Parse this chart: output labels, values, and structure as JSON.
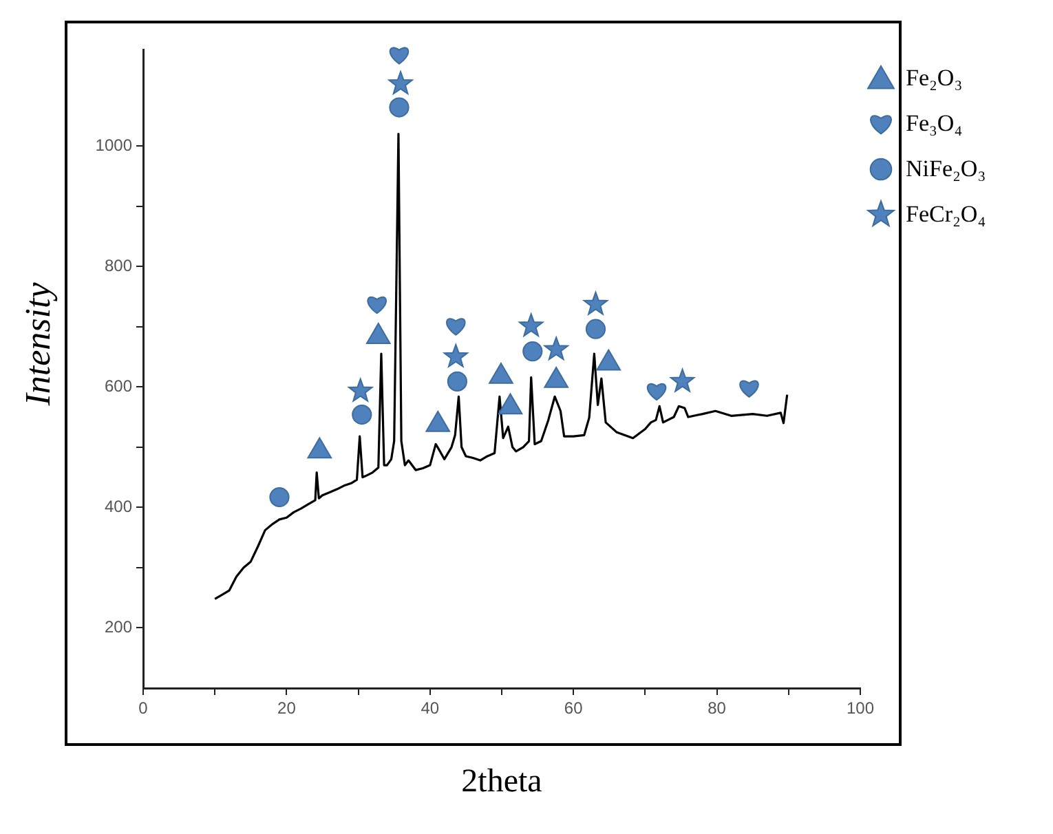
{
  "chart_data": {
    "type": "line",
    "xlabel": "2theta",
    "ylabel": "Intensity",
    "xlim": [
      0,
      100
    ],
    "xticks": [
      0,
      {
        "value": 10,
        "label": null
      },
      20,
      {
        "value": 30,
        "label": null
      },
      40,
      {
        "value": 50,
        "label": null
      },
      60,
      {
        "value": 70,
        "label": null
      },
      80,
      {
        "value": 90,
        "label": null
      },
      100
    ],
    "ylim": [
      100,
      1160
    ],
    "yticks": [
      200,
      {
        "value": 300,
        "label": null
      },
      400,
      {
        "value": 500,
        "label": null
      },
      600,
      {
        "value": 700,
        "label": null
      },
      800,
      {
        "value": 900,
        "label": null
      },
      1000
    ],
    "grid": false,
    "legend": "right",
    "series": [
      {
        "color": "#000000",
        "marker": "none",
        "x": [
          10,
          11,
          12,
          13,
          14,
          15,
          16,
          17,
          18,
          19,
          20,
          21,
          22,
          23,
          24,
          24.2,
          24.5,
          25,
          26,
          27,
          28,
          29,
          29.8,
          30.2,
          30.6,
          31,
          32,
          32.8,
          33.2,
          33.6,
          34,
          34.6,
          35,
          35.6,
          36,
          36.5,
          37,
          38,
          39,
          40,
          40.8,
          41.3,
          42,
          43,
          43.5,
          44,
          44.4,
          45,
          46,
          47,
          48,
          49,
          49.7,
          50.2,
          50.9,
          51.5,
          52,
          53,
          53.8,
          54.1,
          54.6,
          55.5,
          56.5,
          57.4,
          58.2,
          58.7,
          60,
          61.5,
          62.2,
          62.9,
          63.4,
          63.9,
          64.5,
          66,
          68.3,
          70,
          70.8,
          71.5,
          72,
          72.5,
          74,
          74.7,
          75.5,
          76,
          78,
          79.8,
          82,
          85,
          87,
          88.9,
          89.3,
          89.8
        ],
        "values": [
          248,
          255,
          262,
          285,
          300,
          310,
          335,
          362,
          372,
          380,
          383,
          392,
          398,
          405,
          412,
          458,
          415,
          420,
          425,
          430,
          436,
          440,
          446,
          518,
          450,
          452,
          458,
          466,
          655,
          470,
          470,
          480,
          510,
          1020,
          510,
          470,
          478,
          462,
          465,
          470,
          505,
          495,
          480,
          500,
          520,
          584,
          500,
          485,
          482,
          478,
          485,
          490,
          584,
          515,
          534,
          500,
          493,
          500,
          510,
          616,
          505,
          510,
          545,
          584,
          560,
          518,
          518,
          520,
          549,
          655,
          570,
          614,
          541,
          525,
          515,
          530,
          541,
          545,
          568,
          541,
          550,
          568,
          565,
          550,
          555,
          560,
          552,
          555,
          552,
          557,
          540,
          587
        ]
      },
      {
        "type": "scatter",
        "name": "Fe₂O₃",
        "color": "#4f81bd",
        "marker": "triangle",
        "x": [
          24.6,
          32.8,
          41.1,
          49.9,
          51.2,
          57.6,
          64.9
        ],
        "values": [
          497,
          687,
          541,
          621,
          570,
          614,
          643
        ]
      },
      {
        "type": "scatter",
        "name": "Fe₃O₄",
        "color": "#4f81bd",
        "x": [
          35.7,
          32.6,
          43.6,
          71.6,
          84.5
        ],
        "values": [
          1151,
          737,
          701,
          593,
          598
        ]
      },
      {
        "type": "scatter",
        "name": "NiFe₂O₃",
        "color": "#4f81bd",
        "marker": "circle",
        "x": [
          19,
          30.5,
          35.7,
          43.8,
          54.3,
          63.1
        ],
        "values": [
          417,
          554,
          1064,
          609,
          659,
          696
        ]
      },
      {
        "type": "scatter",
        "name": "FeCr₂O₄",
        "color": "#4f81bd",
        "marker": "star",
        "x": [
          30.3,
          35.9,
          43.6,
          54.1,
          57.6,
          63.1,
          75.2
        ],
        "values": [
          593,
          1103,
          650,
          701,
          662,
          737,
          609
        ]
      }
    ]
  }
}
